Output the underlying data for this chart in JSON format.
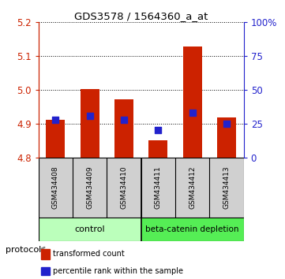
{
  "title": "GDS3578 / 1564360_a_at",
  "samples": [
    "GSM434408",
    "GSM434409",
    "GSM434410",
    "GSM434411",
    "GSM434412",
    "GSM434413"
  ],
  "red_bar_tops": [
    4.912,
    5.002,
    4.972,
    4.852,
    5.128,
    4.92
  ],
  "blue_sq_vals": [
    4.912,
    4.924,
    4.912,
    4.882,
    4.932,
    4.9
  ],
  "bar_base": 4.8,
  "ylim_left": [
    4.8,
    5.2
  ],
  "ylim_right": [
    0,
    100
  ],
  "yticks_left": [
    4.8,
    4.9,
    5.0,
    5.1,
    5.2
  ],
  "yticks_right": [
    0,
    25,
    50,
    75,
    100
  ],
  "ytick_labels_right": [
    "0",
    "25",
    "50",
    "75",
    "100%"
  ],
  "red_color": "#cc2200",
  "blue_color": "#2222cc",
  "control_bg": "#bbffbb",
  "depletion_bg": "#55ee55",
  "sample_box_bg": "#d0d0d0",
  "protocol_label": "protocol",
  "legend_red": "transformed count",
  "legend_blue": "percentile rank within the sample",
  "bar_width": 0.55,
  "blue_sq_size": 30,
  "bg_color": "#ffffff",
  "n_control": 3,
  "n_depletion": 3
}
